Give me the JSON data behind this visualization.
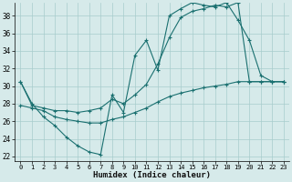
{
  "xlabel": "Humidex (Indice chaleur)",
  "bg_color": "#d6eaea",
  "line_color": "#1a7070",
  "grid_color": "#a8cccc",
  "xlim": [
    -0.5,
    23.5
  ],
  "ylim": [
    21.5,
    39.5
  ],
  "xticks": [
    0,
    1,
    2,
    3,
    4,
    5,
    6,
    7,
    8,
    9,
    10,
    11,
    12,
    13,
    14,
    15,
    16,
    17,
    18,
    19,
    20,
    21,
    22,
    23
  ],
  "yticks": [
    22,
    24,
    26,
    28,
    30,
    32,
    34,
    36,
    38
  ],
  "line1_x": [
    0,
    1,
    2,
    3,
    4,
    5,
    6,
    7,
    8,
    9,
    10,
    11,
    12,
    13,
    14,
    15,
    16,
    17,
    18,
    19,
    20,
    21,
    22,
    23
  ],
  "line1_y": [
    30.5,
    28.0,
    26.5,
    25.5,
    24.2,
    23.2,
    22.5,
    22.2,
    29.0,
    27.0,
    33.5,
    35.2,
    31.8,
    38.0,
    38.8,
    39.5,
    39.2,
    39.0,
    39.5,
    37.5,
    35.2,
    31.2,
    30.5,
    30.5
  ],
  "line2_x": [
    0,
    1,
    2,
    3,
    4,
    5,
    6,
    7,
    8,
    9,
    10,
    11,
    12,
    13,
    14,
    15,
    16,
    17,
    18,
    19,
    20,
    21,
    22,
    23
  ],
  "line2_y": [
    30.5,
    27.8,
    27.5,
    27.2,
    27.2,
    27.0,
    27.2,
    27.5,
    28.5,
    28.0,
    29.0,
    30.2,
    32.5,
    35.5,
    37.8,
    38.5,
    38.8,
    39.2,
    39.0,
    39.5,
    30.5,
    30.5,
    30.5,
    30.5
  ],
  "line3_x": [
    0,
    1,
    2,
    3,
    4,
    5,
    6,
    7,
    8,
    9,
    10,
    11,
    12,
    13,
    14,
    15,
    16,
    17,
    18,
    19,
    20,
    21,
    22,
    23
  ],
  "line3_y": [
    27.8,
    27.5,
    27.2,
    26.5,
    26.2,
    26.0,
    25.8,
    25.8,
    26.2,
    26.5,
    27.0,
    27.5,
    28.2,
    28.8,
    29.2,
    29.5,
    29.8,
    30.0,
    30.2,
    30.5,
    30.5,
    30.5,
    30.5,
    30.5
  ]
}
